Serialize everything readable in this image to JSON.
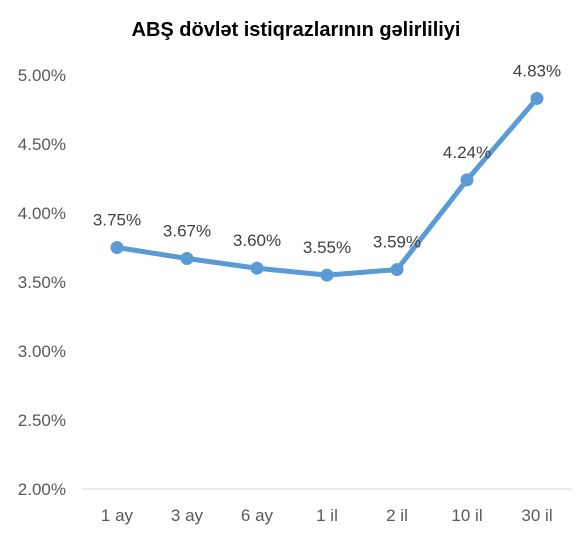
{
  "chart_data": {
    "type": "line",
    "title": "ABŞ dövlət istiqrazlarının gəlirliliyi",
    "categories": [
      "1 ay",
      "3 ay",
      "6 ay",
      "1 il",
      "2 il",
      "10 il",
      "30 il"
    ],
    "series": [
      {
        "values": [
          3.75,
          3.67,
          3.6,
          3.55,
          3.59,
          4.24,
          4.83
        ],
        "data_labels": [
          "3.75%",
          "3.67%",
          "3.60%",
          "3.55%",
          "3.59%",
          "4.24%",
          "4.83%"
        ],
        "color": "#5B9BD5"
      }
    ],
    "y_ticks": [
      2.0,
      2.5,
      3.0,
      3.5,
      4.0,
      4.5,
      5.0
    ],
    "y_tick_labels": [
      "2.00%",
      "2.50%",
      "3.00%",
      "3.50%",
      "4.00%",
      "4.50%",
      "5.00%"
    ],
    "ylim": [
      2.0,
      5.0
    ],
    "grid": false,
    "legend": "none",
    "axis_color": "#D9D9D9"
  }
}
